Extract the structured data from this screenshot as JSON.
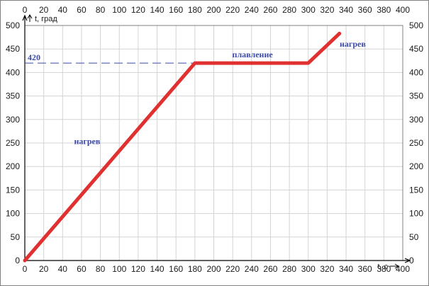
{
  "chart_data": {
    "type": "line",
    "xlabel": "t, с",
    "ylabel": "t, град",
    "xlim": [
      0,
      400
    ],
    "ylim": [
      0,
      500
    ],
    "xticks": [
      0,
      20,
      40,
      60,
      80,
      100,
      120,
      140,
      160,
      180,
      200,
      220,
      240,
      260,
      280,
      300,
      320,
      340,
      360,
      380,
      400
    ],
    "yticks": [
      0,
      50,
      100,
      150,
      200,
      250,
      300,
      350,
      400,
      450,
      500
    ],
    "grid": true,
    "series": [
      {
        "color": "#e03030",
        "x": [
          0,
          180,
          300,
          333
        ],
        "y": [
          0,
          420,
          420,
          483
        ]
      }
    ],
    "reference_line": {
      "y": 420,
      "x_end": 180,
      "label": "420",
      "color": "#3b4aa8"
    },
    "annotations": [
      {
        "text": "нагрев",
        "x": 66,
        "y": 248
      },
      {
        "text": "плавление",
        "x": 241,
        "y": 432
      },
      {
        "text": "нагрев",
        "x": 347,
        "y": 455
      }
    ]
  }
}
